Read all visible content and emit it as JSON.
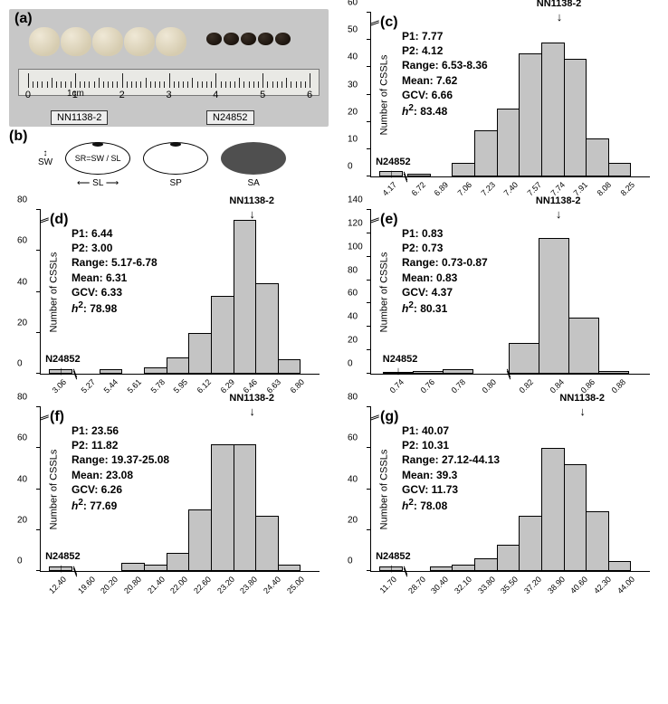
{
  "palette": {
    "bar_fill": "#c4c4c4",
    "bar_stroke": "#000000",
    "bg_photo": "#c7c7c7",
    "seed_light": "#d6ccb0",
    "seed_dark": "#1c140e"
  },
  "panel_a": {
    "label": "(a)",
    "line1_name": "NN1138-2",
    "line2_name": "N24852",
    "ruler_numbers": [
      "0",
      "1",
      "2",
      "3",
      "4",
      "5",
      "6"
    ],
    "ruler_unit": "1cm"
  },
  "panel_b": {
    "label": "(b)",
    "sw": "SW",
    "sl": "SL",
    "sr_text": "SR=SW / SL",
    "sp": "SP",
    "sa": "SA"
  },
  "y_label": "Number of CSSLs",
  "parent1": "NN1138-2",
  "parent2": "N24852",
  "charts": {
    "c": {
      "label": "(c)",
      "stats": {
        "P1": "7.77",
        "P2": "4.12",
        "Range": "6.53-8.36",
        "Mean": "7.62",
        "GCV": "6.66",
        "h2": "83.48"
      },
      "y_max": 60,
      "y_step": 10,
      "x_labels": [
        "4.17",
        "6.72",
        "6.89",
        "7.06",
        "7.23",
        "7.40",
        "7.57",
        "7.74",
        "7.91",
        "8.08",
        "8.25"
      ],
      "values": [
        2,
        1,
        0,
        5,
        17,
        25,
        45,
        49,
        43,
        14,
        5
      ],
      "break_after": 0,
      "p1_bar_index": 7,
      "p2_bar_index": 0
    },
    "d": {
      "label": "(d)",
      "stats": {
        "P1": "6.44",
        "P2": "3.00",
        "Range": "5.17-6.78",
        "Mean": "6.31",
        "GCV": "6.33",
        "h2": "78.98"
      },
      "y_max": 80,
      "y_step": 20,
      "x_labels": [
        "3.06",
        "5.27",
        "5.44",
        "5.61",
        "5.78",
        "5.95",
        "6.12",
        "6.29",
        "6.46",
        "6.63",
        "6.80"
      ],
      "values": [
        2,
        0,
        2,
        0,
        3,
        8,
        20,
        38,
        75,
        44,
        7
      ],
      "break_after": 0,
      "p1_bar_index": 8,
      "p2_bar_index": 0
    },
    "e": {
      "label": "(e)",
      "stats": {
        "P1": "0.83",
        "P2": "0.73",
        "Range": "0.73-0.87",
        "Mean": "0.83",
        "GCV": "4.37",
        "h2": "80.31"
      },
      "y_max": 140,
      "y_step": 20,
      "x_labels": [
        "0.74",
        "0.76",
        "0.78",
        "0.80",
        "0.82",
        "0.84",
        "0.86",
        "0.88"
      ],
      "values": [
        1,
        2,
        4,
        0,
        26,
        116,
        48,
        2
      ],
      "break_after": 3,
      "p1_bar_index": 5,
      "p2_bar_index": 0
    },
    "f": {
      "label": "(f)",
      "stats": {
        "P1": "23.56",
        "P2": "11.82",
        "Range": "19.37-25.08",
        "Mean": "23.08",
        "GCV": "6.26",
        "h2": "77.69"
      },
      "y_max": 80,
      "y_step": 20,
      "x_labels": [
        "12.40",
        "19.60",
        "20.20",
        "20.80",
        "21.40",
        "22.00",
        "22.60",
        "23.20",
        "23.80",
        "24.40",
        "25.00"
      ],
      "values": [
        2,
        0,
        0,
        4,
        3,
        9,
        30,
        62,
        62,
        27,
        3
      ],
      "break_after": 0,
      "p1_bar_index": 8,
      "p2_bar_index": 0
    },
    "g": {
      "label": "(g)",
      "stats": {
        "P1": "40.07",
        "P2": "10.31",
        "Range": "27.12-44.13",
        "Mean": "39.3",
        "GCV": "11.73",
        "h2": "78.08"
      },
      "y_max": 80,
      "y_step": 20,
      "x_labels": [
        "11.70",
        "28.70",
        "30.40",
        "32.10",
        "33.80",
        "35.50",
        "37.20",
        "38.90",
        "40.60",
        "42.30",
        "44.00"
      ],
      "values": [
        2,
        0,
        2,
        3,
        6,
        13,
        27,
        60,
        52,
        29,
        5
      ],
      "break_after": 0,
      "p1_bar_index": 8,
      "p2_bar_index": 0
    }
  }
}
